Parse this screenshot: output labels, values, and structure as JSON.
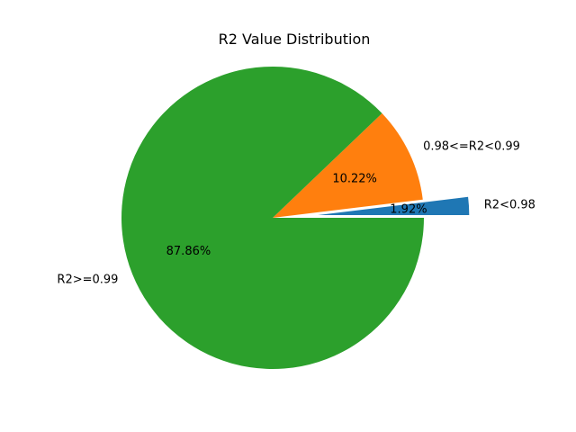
{
  "chart_data": {
    "type": "pie",
    "title": "R2 Value Distribution",
    "slices": [
      {
        "label": "R2<0.98",
        "value": 1.92,
        "pct_text": "1.92%",
        "color": "#1f77b4",
        "explode": 0.3
      },
      {
        "label": "0.98<=R2<0.99",
        "value": 10.22,
        "pct_text": "10.22%",
        "color": "#ff7f0e",
        "explode": 0
      },
      {
        "label": "R2>=0.99",
        "value": 87.86,
        "pct_text": "87.86%",
        "color": "#2ca02c",
        "explode": 0
      }
    ],
    "start_angle_deg": 0,
    "direction": "counterclockwise",
    "legend": "none"
  }
}
